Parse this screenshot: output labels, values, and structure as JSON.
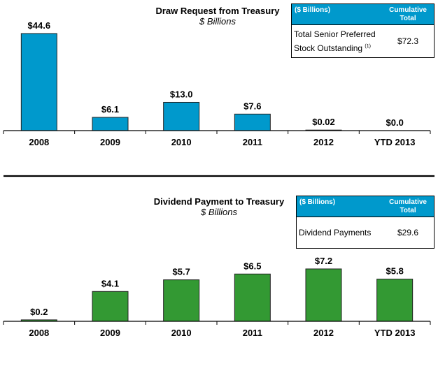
{
  "chart_data": [
    {
      "type": "bar",
      "title": "Draw Request from Treasury",
      "subtitle": "$ Billions",
      "xlabel": "",
      "ylabel": "",
      "categories": [
        "2008",
        "2009",
        "2010",
        "2011",
        "2012",
        "YTD 2013"
      ],
      "values": [
        44.6,
        6.1,
        13.0,
        7.6,
        0.02,
        0.0
      ],
      "data_labels": [
        "$44.6",
        "$6.1",
        "$13.0",
        "$7.6",
        "$0.02",
        "$0.0"
      ],
      "ylim": [
        0,
        44.6
      ],
      "grid": false,
      "bar_color": "#0099cc",
      "summary_table": {
        "header_left": "($ Billions)",
        "header_right_line1": "Cumulative",
        "header_right_line2": "Total",
        "row_label_line1": "Total Senior Preferred",
        "row_label_line2": "Stock Outstanding",
        "row_label_footnote": "(1)",
        "row_value": "$72.3"
      }
    },
    {
      "type": "bar",
      "title": "Dividend Payment to Treasury",
      "subtitle": "$ Billions",
      "xlabel": "",
      "ylabel": "",
      "categories": [
        "2008",
        "2009",
        "2010",
        "2011",
        "2012",
        "YTD 2013"
      ],
      "values": [
        0.2,
        4.1,
        5.7,
        6.5,
        7.2,
        5.8
      ],
      "data_labels": [
        "$0.2",
        "$4.1",
        "$5.7",
        "$6.5",
        "$7.2",
        "$5.8"
      ],
      "ylim": [
        0,
        7.2
      ],
      "grid": false,
      "bar_color": "#339933",
      "summary_table": {
        "header_left": "($ Billions)",
        "header_right_line1": "Cumulative",
        "header_right_line2": "Total",
        "row_label": "Dividend Payments",
        "row_value": "$29.6"
      }
    }
  ]
}
